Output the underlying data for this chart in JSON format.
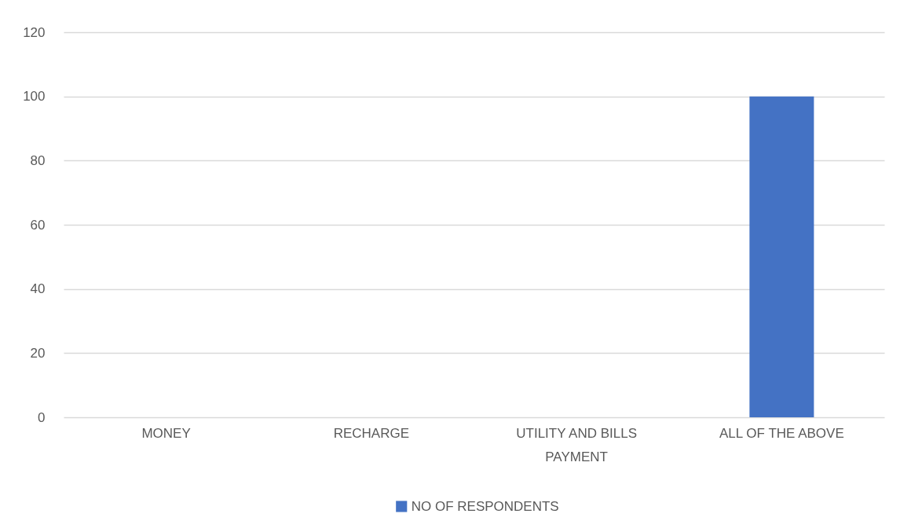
{
  "chart_data": {
    "type": "bar",
    "categories": [
      "MONEY",
      "RECHARGE",
      "UTILITY AND BILLS PAYMENT",
      "ALL OF THE ABOVE"
    ],
    "series": [
      {
        "name": "NO OF RESPONDENTS",
        "color": "#4472c4",
        "values": [
          0,
          0,
          0,
          100
        ]
      }
    ],
    "ylim": [
      0,
      120
    ],
    "yticks": [
      0,
      20,
      40,
      60,
      80,
      100,
      120
    ],
    "grid": "y",
    "legend": "bottom"
  }
}
